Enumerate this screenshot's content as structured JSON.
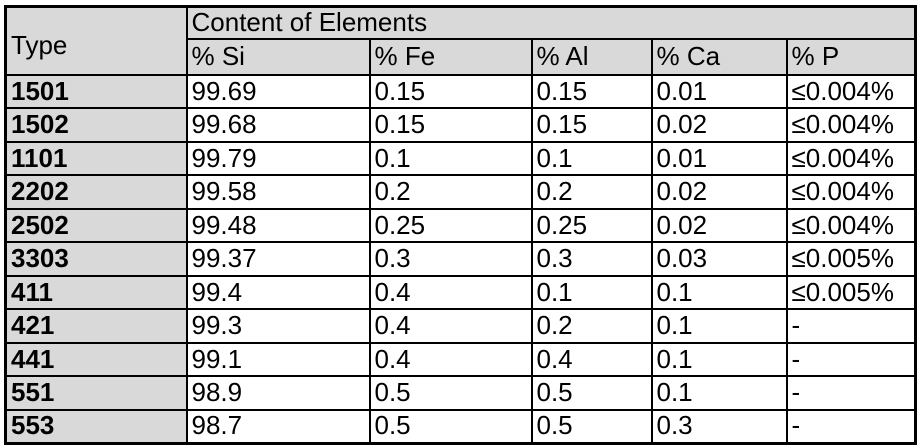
{
  "table": {
    "corner_header": "Type",
    "group_header": "Content of Elements",
    "columns": [
      "% Si",
      "% Fe",
      "% Al",
      "% Ca",
      "% P"
    ],
    "rows": [
      {
        "type": "1501",
        "values": [
          "99.69",
          "0.15",
          "0.15",
          "0.01",
          "≤0.004%"
        ]
      },
      {
        "type": "1502",
        "values": [
          "99.68",
          "0.15",
          "0.15",
          "0.02",
          "≤0.004%"
        ]
      },
      {
        "type": "1101",
        "values": [
          "99.79",
          "0.1",
          "0.1",
          "0.01",
          "≤0.004%"
        ]
      },
      {
        "type": "2202",
        "values": [
          "99.58",
          "0.2",
          "0.2",
          "0.02",
          "≤0.004%"
        ]
      },
      {
        "type": "2502",
        "values": [
          "99.48",
          "0.25",
          "0.25",
          "0.02",
          "≤0.004%"
        ]
      },
      {
        "type": "3303",
        "values": [
          "99.37",
          "0.3",
          "0.3",
          "0.03",
          "≤0.005%"
        ]
      },
      {
        "type": "411",
        "values": [
          "99.4",
          "0.4",
          "0.1",
          "0.1",
          "≤0.005%"
        ]
      },
      {
        "type": "421",
        "values": [
          "99.3",
          "0.4",
          "0.2",
          "0.1",
          "-"
        ]
      },
      {
        "type": "441",
        "values": [
          "99.1",
          "0.4",
          "0.4",
          "0.1",
          "-"
        ]
      },
      {
        "type": "551",
        "values": [
          "98.9",
          "0.5",
          "0.5",
          "0.1",
          "-"
        ]
      },
      {
        "type": "553",
        "values": [
          "98.7",
          "0.5",
          "0.5",
          "0.3",
          "-"
        ]
      }
    ]
  },
  "colors": {
    "header_bg": "#d9d9d9",
    "cell_bg": "#ffffff",
    "border": "#000000",
    "text": "#000000"
  }
}
